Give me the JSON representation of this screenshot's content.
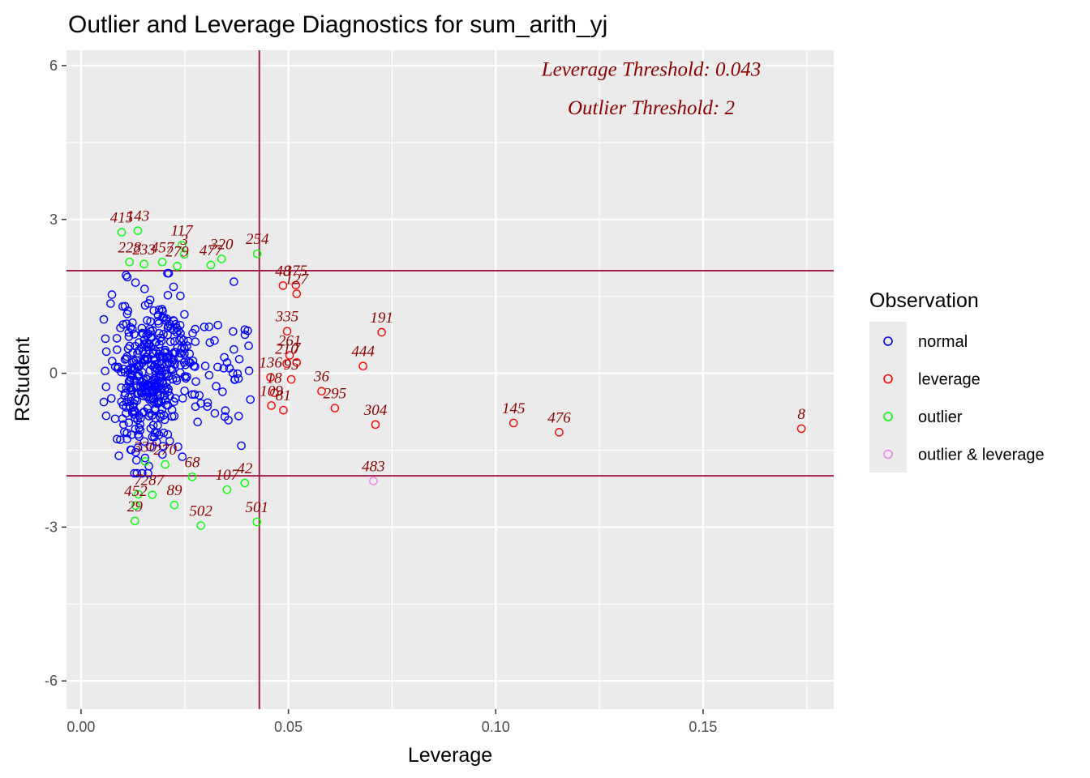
{
  "chart_data": {
    "type": "scatter",
    "title": "Outlier and Leverage Diagnostics for sum_arith_yj",
    "xlabel": "Leverage",
    "ylabel": "RStudent",
    "xlim": [
      -0.0035,
      0.1815
    ],
    "ylim": [
      -6.55,
      6.3
    ],
    "x_ticks": [
      0.0,
      0.05,
      0.1,
      0.15
    ],
    "x_tick_labels": [
      "0.00",
      "0.05",
      "0.10",
      "0.15"
    ],
    "y_ticks": [
      -6,
      -3,
      0,
      3,
      6
    ],
    "y_tick_labels": [
      "-6",
      "-3",
      "0",
      "3",
      "6"
    ],
    "grid": true,
    "legend": {
      "title": "Observation",
      "placement": "right",
      "entries": [
        {
          "key": "normal",
          "label": "normal",
          "color": "#0000ff"
        },
        {
          "key": "leverage",
          "label": "leverage",
          "color": "#ff0000"
        },
        {
          "key": "outlier",
          "label": "outlier",
          "color": "#00ff00"
        },
        {
          "key": "outlier_leverage",
          "label": "outlier & leverage",
          "color": "#ee82ee"
        }
      ]
    },
    "annotations": [
      {
        "text": "Leverage Threshold: 0.043",
        "x": 0.1375,
        "y": 5.8
      },
      {
        "text": "Outlier Threshold: 2",
        "x": 0.1375,
        "y": 5.05
      }
    ],
    "reference_lines": {
      "vertical": [
        0.043
      ],
      "horizontal": [
        2,
        -2
      ],
      "color": "#a0204d"
    },
    "labeled_points": [
      {
        "label": "415",
        "x": 0.0098,
        "y": 2.75,
        "group": "outlier"
      },
      {
        "label": "143",
        "x": 0.0137,
        "y": 2.78,
        "group": "outlier"
      },
      {
        "label": "117",
        "x": 0.0243,
        "y": 2.5,
        "group": "outlier"
      },
      {
        "label": "254",
        "x": 0.0425,
        "y": 2.33,
        "group": "outlier"
      },
      {
        "label": "320",
        "x": 0.0339,
        "y": 2.23,
        "group": "outlier"
      },
      {
        "label": "477",
        "x": 0.0313,
        "y": 2.11,
        "group": "outlier"
      },
      {
        "label": "228",
        "x": 0.0117,
        "y": 2.17,
        "group": "outlier"
      },
      {
        "label": "233",
        "x": 0.0152,
        "y": 2.13,
        "group": "outlier"
      },
      {
        "label": "457",
        "x": 0.0196,
        "y": 2.17,
        "group": "outlier"
      },
      {
        "label": "279",
        "x": 0.0232,
        "y": 2.09,
        "group": "outlier"
      },
      {
        "label": "3",
        "x": 0.0249,
        "y": 2.32,
        "group": "outlier"
      },
      {
        "label": "48",
        "x": 0.0487,
        "y": 1.71,
        "group": "leverage"
      },
      {
        "label": "375",
        "x": 0.0518,
        "y": 1.72,
        "group": "leverage"
      },
      {
        "label": "127",
        "x": 0.052,
        "y": 1.55,
        "group": "leverage"
      },
      {
        "label": "335",
        "x": 0.0497,
        "y": 0.82,
        "group": "leverage"
      },
      {
        "label": "191",
        "x": 0.0725,
        "y": 0.8,
        "group": "leverage"
      },
      {
        "label": "444",
        "x": 0.068,
        "y": 0.14,
        "group": "leverage"
      },
      {
        "label": "261",
        "x": 0.0503,
        "y": 0.35,
        "group": "leverage"
      },
      {
        "label": "210",
        "x": 0.0496,
        "y": 0.19,
        "group": "leverage"
      },
      {
        "label": "7",
        "x": 0.052,
        "y": 0.21,
        "group": "leverage"
      },
      {
        "label": "136",
        "x": 0.0457,
        "y": -0.08,
        "group": "leverage"
      },
      {
        "label": "36",
        "x": 0.058,
        "y": -0.35,
        "group": "leverage"
      },
      {
        "label": "95",
        "x": 0.0507,
        "y": -0.12,
        "group": "leverage"
      },
      {
        "label": "295",
        "x": 0.0612,
        "y": -0.68,
        "group": "leverage"
      },
      {
        "label": "18",
        "x": 0.0466,
        "y": -0.38,
        "group": "leverage"
      },
      {
        "label": "109",
        "x": 0.0459,
        "y": -0.63,
        "group": "leverage"
      },
      {
        "label": "81",
        "x": 0.0488,
        "y": -0.72,
        "group": "leverage"
      },
      {
        "label": "304",
        "x": 0.071,
        "y": -1.0,
        "group": "leverage"
      },
      {
        "label": "145",
        "x": 0.1043,
        "y": -0.97,
        "group": "leverage"
      },
      {
        "label": "476",
        "x": 0.1153,
        "y": -1.15,
        "group": "leverage"
      },
      {
        "label": "8",
        "x": 0.1737,
        "y": -1.08,
        "group": "leverage"
      },
      {
        "label": "483",
        "x": 0.0705,
        "y": -2.1,
        "group": "outlier_leverage"
      },
      {
        "label": "330",
        "x": 0.0155,
        "y": -1.72,
        "group": "outlier"
      },
      {
        "label": "270",
        "x": 0.0203,
        "y": -1.78,
        "group": "outlier"
      },
      {
        "label": "68",
        "x": 0.0268,
        "y": -2.02,
        "group": "outlier"
      },
      {
        "label": "107",
        "x": 0.0352,
        "y": -2.27,
        "group": "outlier"
      },
      {
        "label": "42",
        "x": 0.0395,
        "y": -2.14,
        "group": "outlier"
      },
      {
        "label": "287",
        "x": 0.0172,
        "y": -2.37,
        "group": "outlier"
      },
      {
        "label": "7",
        "x": 0.0138,
        "y": -2.36,
        "group": "outlier"
      },
      {
        "label": "89",
        "x": 0.0225,
        "y": -2.57,
        "group": "outlier"
      },
      {
        "label": "452",
        "x": 0.0132,
        "y": -2.58,
        "group": "outlier"
      },
      {
        "label": "29",
        "x": 0.013,
        "y": -2.88,
        "group": "outlier"
      },
      {
        "label": "502",
        "x": 0.0289,
        "y": -2.97,
        "group": "outlier"
      },
      {
        "label": "501",
        "x": 0.0424,
        "y": -2.9,
        "group": "outlier"
      }
    ],
    "normal_points_description_count": 440
  }
}
